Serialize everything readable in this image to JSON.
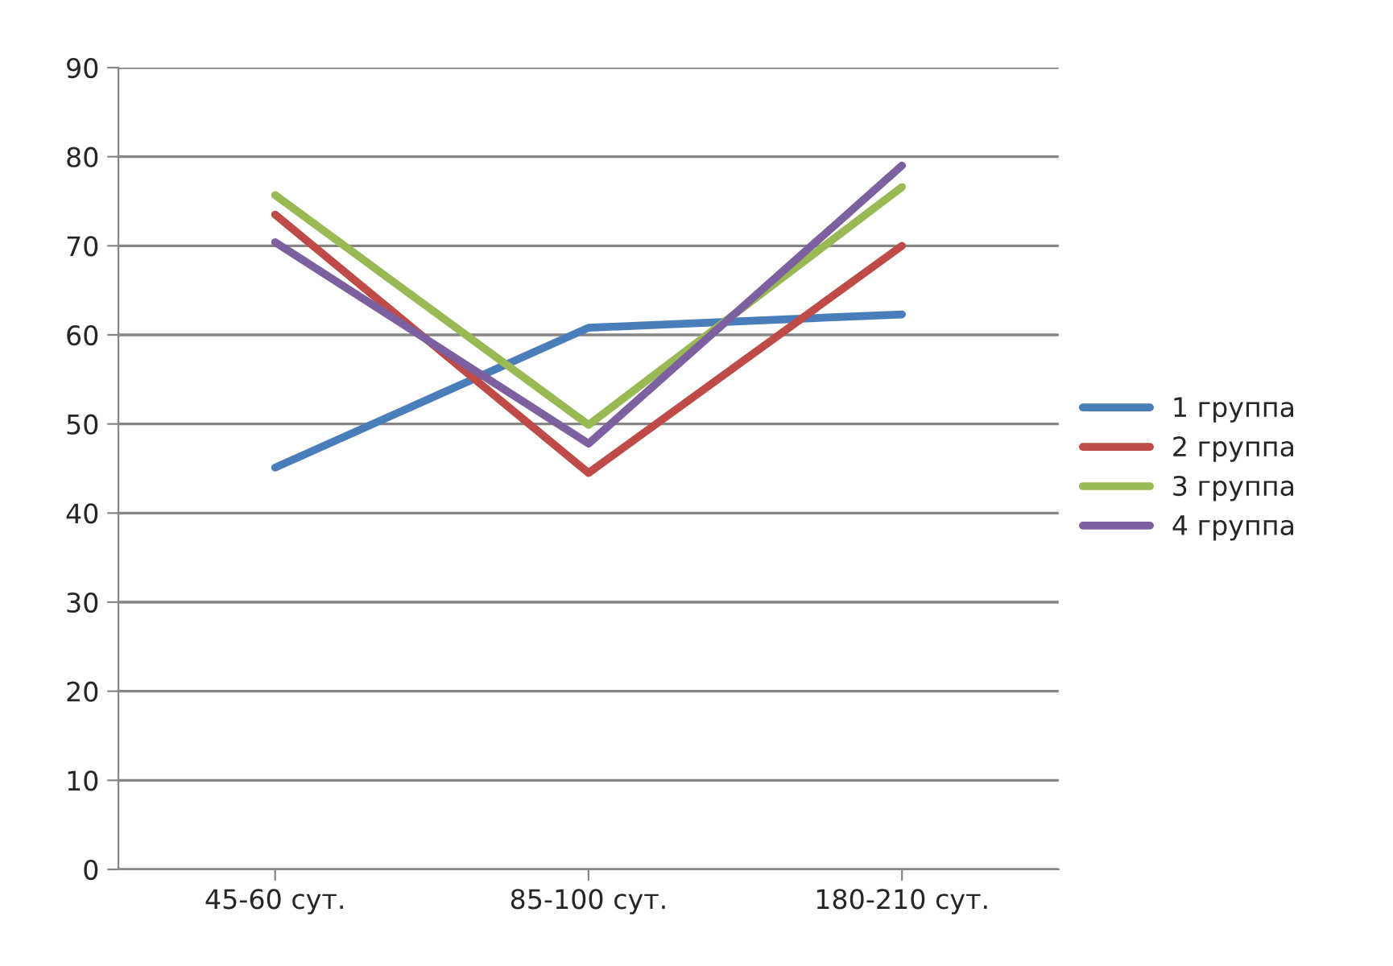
{
  "chart_data": {
    "type": "line",
    "categories": [
      "45-60 сут.",
      "85-100 сут.",
      "180-210 сут."
    ],
    "series": [
      {
        "name": "1 группа",
        "color": "#4a7ebb",
        "values": [
          45.1,
          60.8,
          62.3
        ]
      },
      {
        "name": "2 группа",
        "color": "#be4b48",
        "values": [
          73.5,
          44.5,
          70.0
        ]
      },
      {
        "name": "3 группа",
        "color": "#98b954",
        "values": [
          75.7,
          49.9,
          76.6
        ]
      },
      {
        "name": "4 группа",
        "color": "#7d60a0",
        "values": [
          70.4,
          47.8,
          79.0
        ]
      }
    ],
    "ylim": [
      0,
      90
    ],
    "yticks": [
      0,
      10,
      20,
      30,
      40,
      50,
      60,
      70,
      80,
      90
    ],
    "grid": "y",
    "legend": "right",
    "marker": "none",
    "line_style": "solid"
  }
}
